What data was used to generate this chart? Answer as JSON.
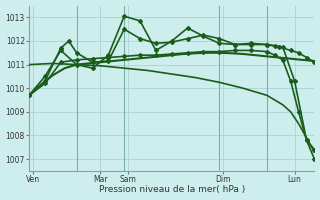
{
  "background_color": "#ceeeed",
  "grid_color": "#aed8d6",
  "line_color": "#1a5c1a",
  "xlabel": "Pression niveau de la mer( hPa )",
  "ylim": [
    1006.5,
    1013.5
  ],
  "yticks": [
    1007,
    1008,
    1009,
    1010,
    1011,
    1012,
    1013
  ],
  "xlim": [
    0,
    72
  ],
  "vlines_x": [
    12,
    24,
    48,
    60,
    72
  ],
  "vlines_color": "#7ab0a8",
  "x_labels": [
    {
      "x": 1,
      "label": "Ven"
    },
    {
      "x": 18,
      "label": "Mar"
    },
    {
      "x": 25,
      "label": "Sam"
    },
    {
      "x": 49,
      "label": "Dim"
    },
    {
      "x": 67,
      "label": "Lun"
    }
  ],
  "series": [
    {
      "x": [
        0,
        3,
        6,
        9,
        12,
        15,
        18,
        21,
        24,
        27,
        30,
        33,
        36,
        39,
        42,
        45,
        48,
        51,
        54,
        57,
        60,
        63,
        66,
        69,
        72
      ],
      "y": [
        1009.7,
        1010.15,
        1010.55,
        1010.85,
        1011.0,
        1011.05,
        1011.1,
        1011.15,
        1011.2,
        1011.25,
        1011.3,
        1011.35,
        1011.4,
        1011.45,
        1011.48,
        1011.5,
        1011.5,
        1011.48,
        1011.45,
        1011.4,
        1011.35,
        1011.3,
        1011.25,
        1011.2,
        1011.15
      ],
      "marker": false,
      "linewidth": 1.5
    },
    {
      "x": [
        0,
        4,
        8,
        12,
        16,
        20,
        24,
        28,
        32,
        36,
        40,
        44,
        48,
        52,
        56,
        60,
        63,
        66,
        68,
        70,
        72
      ],
      "y": [
        1009.7,
        1010.5,
        1011.6,
        1011.0,
        1010.85,
        1011.4,
        1013.05,
        1012.85,
        1011.6,
        1012.0,
        1012.55,
        1012.2,
        1011.9,
        1011.85,
        1011.9,
        1011.85,
        1011.75,
        1011.6,
        1011.5,
        1011.3,
        1011.1
      ],
      "marker": true,
      "linewidth": 1.2
    },
    {
      "x": [
        0,
        4,
        8,
        10,
        12,
        16,
        20,
        24,
        28,
        32,
        36,
        40,
        44,
        48,
        52,
        56,
        60,
        62,
        64,
        67,
        70,
        72
      ],
      "y": [
        1009.7,
        1010.3,
        1011.7,
        1012.0,
        1011.5,
        1011.1,
        1011.15,
        1012.5,
        1012.1,
        1011.9,
        1011.95,
        1012.1,
        1012.25,
        1012.1,
        1011.85,
        1011.85,
        1011.85,
        1011.8,
        1011.75,
        1010.3,
        1007.8,
        1007.0
      ],
      "marker": true,
      "linewidth": 1.2
    },
    {
      "x": [
        0,
        4,
        8,
        12,
        16,
        20,
        24,
        28,
        32,
        36,
        40,
        44,
        48,
        52,
        56,
        60,
        62,
        64,
        66,
        68,
        70,
        72
      ],
      "y": [
        1009.7,
        1010.2,
        1011.1,
        1011.2,
        1011.25,
        1011.3,
        1011.35,
        1011.4,
        1011.4,
        1011.45,
        1011.5,
        1011.55,
        1011.55,
        1011.6,
        1011.6,
        1011.55,
        1011.4,
        1011.2,
        1010.3,
        1009.0,
        1007.8,
        1007.4
      ],
      "marker": true,
      "linewidth": 1.2
    },
    {
      "x": [
        0,
        6,
        12,
        18,
        24,
        30,
        36,
        42,
        48,
        54,
        60,
        64,
        66,
        68,
        70,
        72
      ],
      "y": [
        1011.0,
        1011.05,
        1011.0,
        1010.95,
        1010.85,
        1010.75,
        1010.6,
        1010.45,
        1010.25,
        1010.0,
        1009.7,
        1009.3,
        1009.0,
        1008.5,
        1007.9,
        1007.3
      ],
      "marker": false,
      "linewidth": 1.2
    }
  ]
}
